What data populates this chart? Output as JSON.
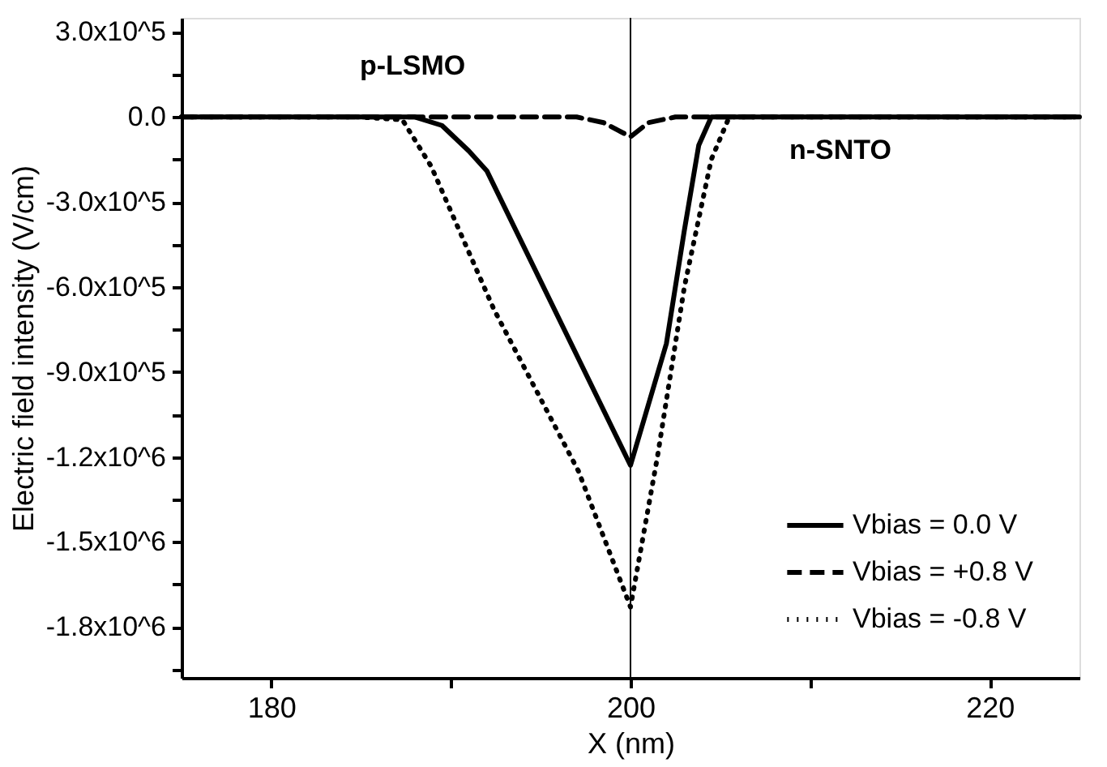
{
  "chart_data": {
    "type": "line",
    "xlabel": "X (nm)",
    "ylabel": "Electric field intensity (V/cm)",
    "xlim": [
      175,
      225
    ],
    "xticks": [
      180,
      {
        "value": 190,
        "label": null
      },
      200,
      {
        "value": 210,
        "label": null
      },
      220
    ],
    "ylim": [
      -1980000,
      350000
    ],
    "yticks": [
      {
        "value": 300000,
        "label": "3.0x10^5"
      },
      {
        "value": 150000,
        "label": null
      },
      {
        "value": 0,
        "label": "0.0"
      },
      {
        "value": -150000,
        "label": null
      },
      {
        "value": -300000,
        "label": "-3.0x10^5"
      },
      {
        "value": -450000,
        "label": null
      },
      {
        "value": -600000,
        "label": "-6.0x10^5"
      },
      {
        "value": -750000,
        "label": null
      },
      {
        "value": -900000,
        "label": "-9.0x10^5"
      },
      {
        "value": -1050000,
        "label": null
      },
      {
        "value": -1200000,
        "label": "-1.2x10^6"
      },
      {
        "value": -1350000,
        "label": null
      },
      {
        "value": -1500000,
        "label": "-1.5x10^6"
      },
      {
        "value": -1650000,
        "label": null
      },
      {
        "value": -1800000,
        "label": "-1.8x10^6"
      },
      {
        "value": -1950000,
        "label": null
      }
    ],
    "grid": false,
    "legend": "bottom right",
    "marker": "none",
    "ref_lines": [
      {
        "axis": "x",
        "value": 200,
        "color": "#000000",
        "line_style": "solid"
      }
    ],
    "annotations": [
      "p-LSMO",
      "n-SNTO"
    ],
    "series": [
      {
        "name": "Vbias =  0.0 V",
        "color": "#000000",
        "line_style": "solid",
        "x": [
          175,
          188,
          189.5,
          191,
          192,
          200,
          202,
          203,
          203.8,
          204.5,
          225
        ],
        "values": [
          0,
          0,
          -30000,
          -120000,
          -190000,
          -1230000,
          -800000,
          -400000,
          -100000,
          0,
          0
        ]
      },
      {
        "name": "Vbias = +0.8 V",
        "color": "#000000",
        "line_style": "dashed",
        "x": [
          175,
          197,
          198.5,
          200,
          201,
          202.5,
          225
        ],
        "values": [
          0,
          0,
          -20000,
          -70000,
          -20000,
          0,
          0
        ]
      },
      {
        "name": "Vbias = -0.8 V",
        "color": "#000000",
        "line_style": "dotted",
        "x": [
          175,
          184.8,
          187.3,
          188.9,
          192.4,
          197.1,
          200,
          201.5,
          203,
          204.5,
          205.5,
          225
        ],
        "values": [
          0,
          0,
          -10000,
          -174000,
          -680000,
          -1250000,
          -1730000,
          -1200000,
          -600000,
          -150000,
          0,
          0
        ]
      }
    ]
  }
}
